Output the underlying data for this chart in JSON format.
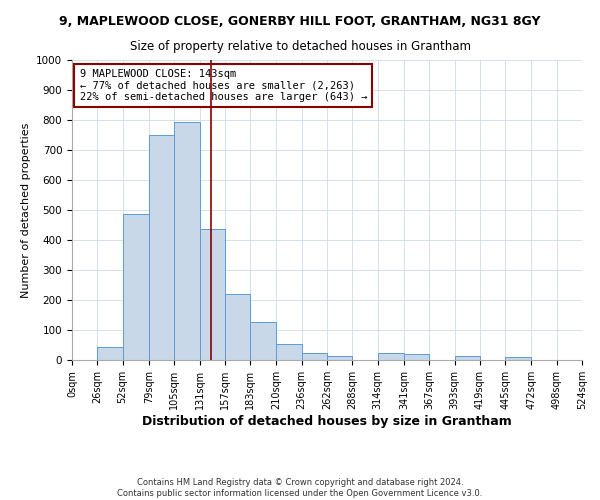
{
  "title": "9, MAPLEWOOD CLOSE, GONERBY HILL FOOT, GRANTHAM, NG31 8GY",
  "subtitle": "Size of property relative to detached houses in Grantham",
  "xlabel": "Distribution of detached houses by size in Grantham",
  "ylabel": "Number of detached properties",
  "bin_edges": [
    0,
    26,
    52,
    79,
    105,
    131,
    157,
    183,
    210,
    236,
    262,
    288,
    314,
    341,
    367,
    393,
    419,
    445,
    472,
    498,
    524
  ],
  "bar_heights": [
    0,
    44,
    487,
    749,
    793,
    437,
    219,
    127,
    52,
    25,
    13,
    0,
    25,
    19,
    0,
    14,
    0,
    10,
    0,
    0
  ],
  "bar_color": "#c8d8e8",
  "bar_edge_color": "#5b9bd5",
  "property_line_x": 143,
  "property_line_color": "#8b0000",
  "annotation_line1": "9 MAPLEWOOD CLOSE: 143sqm",
  "annotation_line2": "← 77% of detached houses are smaller (2,263)",
  "annotation_line3": "22% of semi-detached houses are larger (643) →",
  "annotation_box_color": "#8b0000",
  "annotation_box_fill": "#ffffff",
  "ylim": [
    0,
    1000
  ],
  "yticks": [
    0,
    100,
    200,
    300,
    400,
    500,
    600,
    700,
    800,
    900,
    1000
  ],
  "tick_labels": [
    "0sqm",
    "26sqm",
    "52sqm",
    "79sqm",
    "105sqm",
    "131sqm",
    "157sqm",
    "183sqm",
    "210sqm",
    "236sqm",
    "262sqm",
    "288sqm",
    "314sqm",
    "341sqm",
    "367sqm",
    "393sqm",
    "419sqm",
    "445sqm",
    "472sqm",
    "498sqm",
    "524sqm"
  ],
  "footer_line1": "Contains HM Land Registry data © Crown copyright and database right 2024.",
  "footer_line2": "Contains public sector information licensed under the Open Government Licence v3.0.",
  "background_color": "#ffffff",
  "grid_color": "#d0dce8",
  "title_fontsize": 9,
  "subtitle_fontsize": 8.5,
  "xlabel_fontsize": 9,
  "ylabel_fontsize": 8,
  "tick_fontsize": 7,
  "footer_fontsize": 6
}
